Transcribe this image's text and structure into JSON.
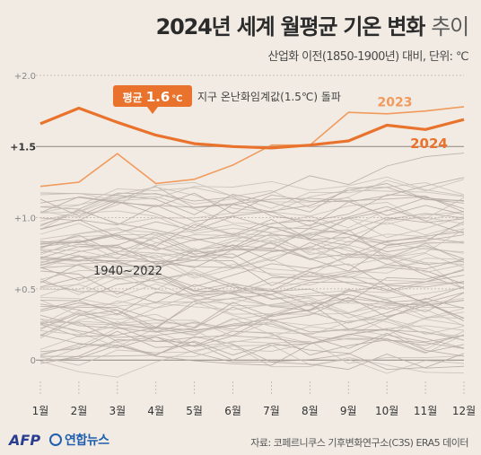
{
  "title_main": "2024년 세계 월평균 기온 변화",
  "title_light": "추이",
  "subtitle": "산업화 이전(1850-1900년) 대비, 단위: ℃",
  "source": "자료: 코페르니쿠스 기후변화연구소(C3S) ERA5 데이터",
  "logos": {
    "afp": "AFP",
    "yonhap": "연합뉴스"
  },
  "colors": {
    "accent": "#e9732d",
    "accent_light": "#f19a5c",
    "background": "#f1ebe4",
    "history": "#b3aaa1"
  },
  "chart_data": {
    "type": "line",
    "x": [
      "1월",
      "2월",
      "3월",
      "4월",
      "5월",
      "6월",
      "7월",
      "8월",
      "9월",
      "10월",
      "11월",
      "12월"
    ],
    "y_ticks": [
      "+2.0",
      "+1.5",
      "+1.0",
      "+0.5",
      "0"
    ],
    "ylim": [
      -0.15,
      2.0
    ],
    "threshold": {
      "value": 1.5,
      "label": "지구 온난화임계값(1.5℃) 돌파"
    },
    "badge": {
      "prefix": "평균",
      "value": "1.6",
      "unit": "℃"
    },
    "history_label": "1940~2022",
    "history_colors": [
      "#b3aaa1",
      "#c7bfb7"
    ],
    "series": [
      {
        "name": "2024",
        "values": [
          1.66,
          1.77,
          1.67,
          1.58,
          1.52,
          1.5,
          1.49,
          1.51,
          1.54,
          1.65,
          1.62,
          1.69
        ]
      },
      {
        "name": "2023",
        "values": [
          1.22,
          1.25,
          1.45,
          1.24,
          1.27,
          1.37,
          1.51,
          1.51,
          1.74,
          1.73,
          1.75,
          1.78
        ]
      }
    ]
  }
}
